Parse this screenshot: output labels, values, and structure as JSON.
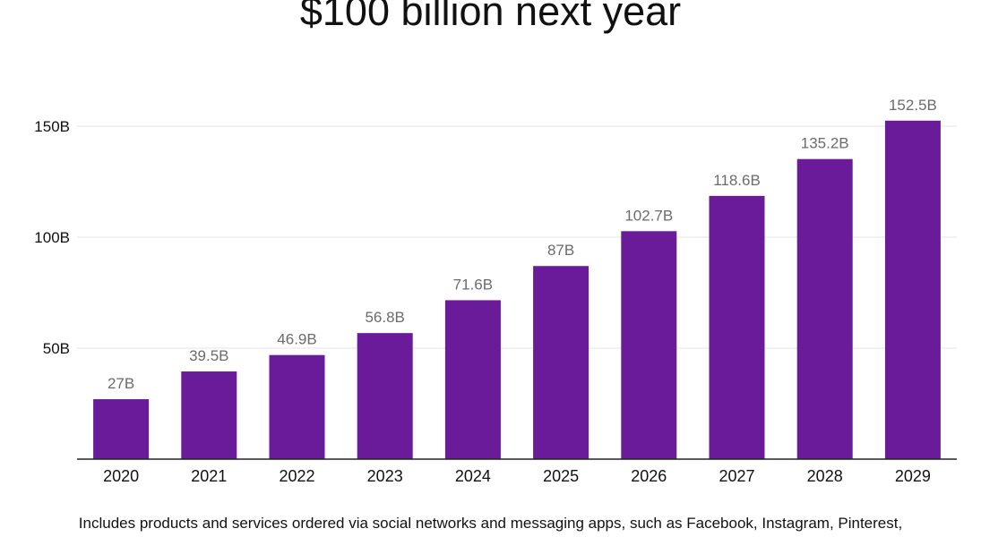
{
  "title_line1": "",
  "title_line2": "$100 billion next year",
  "footnote_line1": "Includes products and services ordered via social networks and messaging apps, such as Facebook, Instagram, Pinterest,",
  "colors": {
    "bar": "#6a1b9a",
    "grid": "#e6e6e6",
    "axis": "#222222",
    "value_label": "#6b6b6b",
    "tick": "#111111"
  },
  "chart_data": {
    "type": "bar",
    "categories": [
      "2020",
      "2021",
      "2022",
      "2023",
      "2024",
      "2025",
      "2026",
      "2027",
      "2028",
      "2029"
    ],
    "values": [
      27,
      39.5,
      46.9,
      56.8,
      71.6,
      87,
      102.7,
      118.6,
      135.2,
      152.5
    ],
    "value_labels": [
      "27B",
      "39.5B",
      "46.9B",
      "56.8B",
      "71.6B",
      "87B",
      "102.7B",
      "118.6B",
      "135.2B",
      "152.5B"
    ],
    "yticks": [
      50,
      100,
      150
    ],
    "ytick_labels": [
      "50B",
      "100B",
      "150B"
    ],
    "ylim": [
      0,
      150
    ],
    "grid": true,
    "legend": "none",
    "xlabel": "",
    "ylabel": ""
  }
}
